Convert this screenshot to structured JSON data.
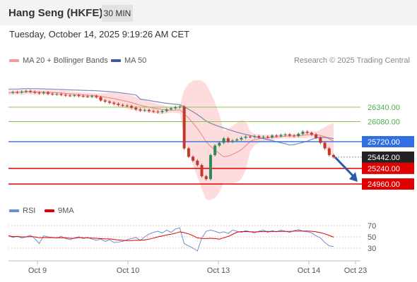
{
  "header": {
    "title": "Hang Seng (HKFE)",
    "timeframe": "30 MIN"
  },
  "datetime": "Tuesday, October 14, 2025 9:19:26 AM CET",
  "legend": {
    "ma_bb": "MA 20 + Bollinger Bands",
    "ma50": "MA 50"
  },
  "credit": "Research © 2025 Trading Central",
  "rsi_legend": {
    "rsi": "RSI",
    "ma9": "9MA"
  },
  "colors": {
    "up": "#2e8b57",
    "down": "#c0392b",
    "bb_fill": "#f9c0c0",
    "ma20": "#f08080",
    "ma50": "#5b6fae",
    "resistance": "#8bc34a",
    "pivot": "#2f6fe0",
    "support": "#e00000",
    "rsi": "#6b8fd6",
    "rsi_ma": "#e00000",
    "arrow": "#2a5ca8"
  },
  "chart_data": {
    "type": "candlestick",
    "x_ticks": [
      "Oct 9",
      "Oct 10",
      "Oct 13",
      "Oct 14",
      "Oct 23"
    ],
    "levels": [
      {
        "value": 26340.0,
        "label": "26340.00",
        "kind": "resistance"
      },
      {
        "value": 26080.0,
        "label": "26080.00",
        "kind": "resistance"
      },
      {
        "value": 25720.0,
        "label": "25720.00",
        "kind": "pivot"
      },
      {
        "value": 25442.0,
        "label": "25442.00",
        "kind": "last"
      },
      {
        "value": 25240.0,
        "label": "25240.00",
        "kind": "support"
      },
      {
        "value": 24960.0,
        "label": "24960.00",
        "kind": "support"
      }
    ],
    "price_path": [
      26600,
      26610,
      26605,
      26620,
      26630,
      26615,
      26600,
      26590,
      26605,
      26580,
      26570,
      26575,
      26560,
      26550,
      26545,
      26555,
      26540,
      26535,
      26530,
      26540,
      26520,
      26460,
      26440,
      26420,
      26400,
      26380,
      26370,
      26360,
      26330,
      26300,
      26280,
      26290,
      26270,
      26260,
      26250,
      26270,
      26300,
      26320,
      26340,
      26350,
      25600,
      25450,
      25380,
      25300,
      25100,
      25050,
      25480,
      25650,
      25700,
      25780,
      25720,
      25740,
      25760,
      25790,
      25810,
      25805,
      25820,
      25800,
      25810,
      25800,
      25830,
      25820,
      25840,
      25850,
      25830,
      25820,
      25860,
      25900,
      25880,
      25850,
      25790,
      25700,
      25600,
      25480,
      25442
    ],
    "rsi": {
      "ticks": [
        "70",
        "50",
        "30"
      ],
      "values": [
        52,
        49,
        51,
        48,
        50,
        53,
        47,
        38,
        52,
        50,
        49,
        48,
        51,
        47,
        45,
        48,
        50,
        47,
        49,
        46,
        44,
        46,
        42,
        45,
        40,
        41,
        42,
        45,
        47,
        49,
        44,
        50,
        55,
        58,
        60,
        57,
        62,
        58,
        64,
        66,
        38,
        34,
        30,
        25,
        48,
        60,
        62,
        60,
        57,
        59,
        56,
        62,
        60,
        58,
        61,
        59,
        57,
        60,
        62,
        58,
        61,
        59,
        62,
        60,
        58,
        61,
        63,
        60,
        59,
        57,
        52,
        48,
        40,
        34,
        33
      ]
    }
  }
}
